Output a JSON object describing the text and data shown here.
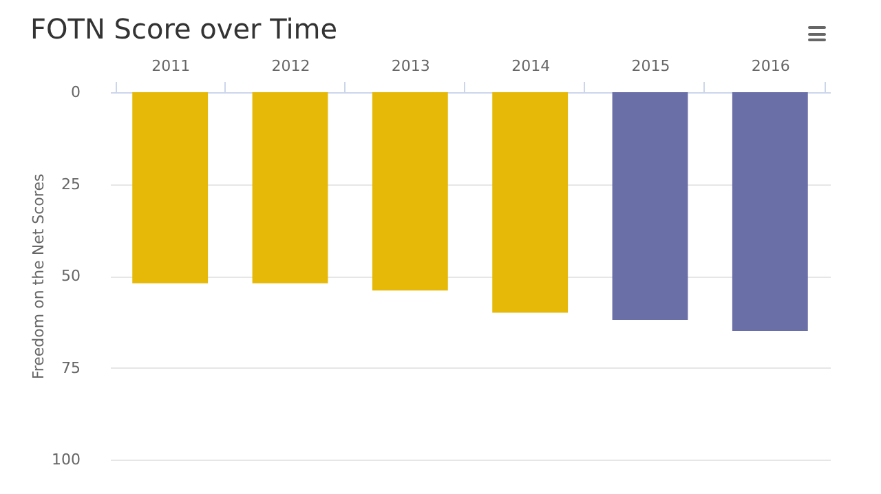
{
  "chart_data": {
    "type": "bar",
    "title": "FOTN Score over Time",
    "ylabel": "Freedom on the Net Scores",
    "categories": [
      "2011",
      "2012",
      "2013",
      "2014",
      "2015",
      "2016"
    ],
    "values": [
      52,
      52,
      54,
      60,
      62,
      65
    ],
    "colors": [
      "#e6b908",
      "#e6b908",
      "#e6b908",
      "#e6b908",
      "#6b6fa8",
      "#6b6fa8"
    ],
    "ylim": [
      100,
      0
    ],
    "yticks": [
      0,
      25,
      50,
      75,
      100
    ],
    "grid": "y"
  }
}
